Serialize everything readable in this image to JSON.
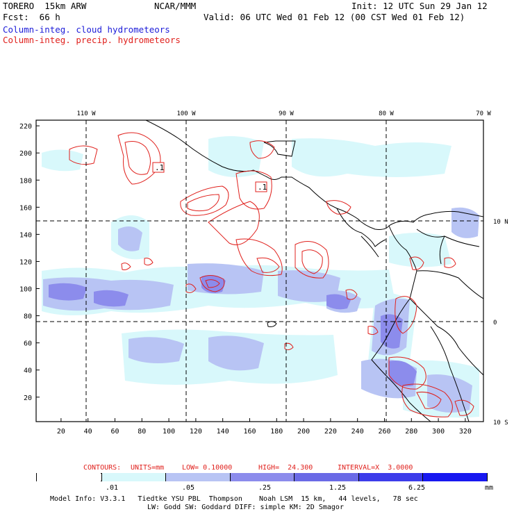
{
  "header": {
    "model": "TORERO  15km ARW",
    "org": "NCAR/MMM",
    "init": "Init: 12 UTC Sun 29 Jan 12",
    "fcst": "Fcst:  66 h",
    "valid": "Valid: 06 UTC Wed 01 Feb 12 (00 CST Wed 01 Feb 12)",
    "field1": "Column-integ. cloud hydrometeors",
    "field2": "Column-integ. precip. hydrometeors",
    "field1_color": "#1c1cd8",
    "field2_color": "#e0201c"
  },
  "map": {
    "lon_labels": [
      "110 W",
      "100 W",
      "90 W",
      "80 W",
      "70 W"
    ],
    "lat_labels": [
      "10 N",
      "0",
      "10 S"
    ],
    "y_ticks": [
      "220",
      "200",
      "180",
      "160",
      "140",
      "120",
      "100",
      "80",
      "60",
      "40",
      "20"
    ],
    "x_ticks": [
      "20",
      "40",
      "60",
      "80",
      "100",
      "120",
      "140",
      "160",
      "180",
      "200",
      "220",
      "240",
      "260",
      "280",
      "300",
      "320"
    ],
    "contour_labels": [
      ".1",
      ".1"
    ]
  },
  "contours_info": {
    "label": "CONTOURS:",
    "units": "UNITS=mm",
    "low": "LOW= 0.10000",
    "high": "HIGH=  24.300",
    "interval": "INTERVAL=X  3.0000"
  },
  "colorbar": {
    "labels": [
      ".01",
      ".05",
      ".25",
      "1.25",
      "6.25"
    ],
    "unit": "mm",
    "colors": [
      "#ffffff",
      "#d8f8fb",
      "#b8c4f4",
      "#8c8cec",
      "#6a6ae6",
      "#3c3cea",
      "#1818f0"
    ]
  },
  "footer": {
    "line1": "Model Info: V3.3.1   Tiedtke YSU PBL  Thompson    Noah LSM  15 km,   44 levels,   78 sec",
    "line2": "LW: Godd SW: Goddard DIFF: simple KM: 2D Smagor"
  }
}
